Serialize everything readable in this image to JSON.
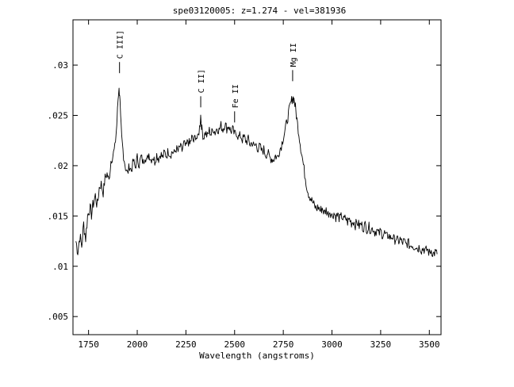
{
  "chart_data": {
    "type": "line",
    "title": "spe03120005: z=1.274 - vel=381936",
    "xlabel": "Wavelength (angstroms)",
    "ylabel": "",
    "xlim": [
      1670,
      3560
    ],
    "ylim": [
      0.0032,
      0.0345
    ],
    "grid": false,
    "x_ticks": [
      {
        "value": 1750,
        "label": "1750"
      },
      {
        "value": 2000,
        "label": "2000"
      },
      {
        "value": 2250,
        "label": "2250"
      },
      {
        "value": 2500,
        "label": "2500"
      },
      {
        "value": 2750,
        "label": "2750"
      },
      {
        "value": 3000,
        "label": "3000"
      },
      {
        "value": 3250,
        "label": "3250"
      },
      {
        "value": 3500,
        "label": "3500"
      }
    ],
    "y_ticks": [
      {
        "value": 0.005,
        "label": ".005"
      },
      {
        "value": 0.01,
        "label": ".01"
      },
      {
        "value": 0.015,
        "label": ".015"
      },
      {
        "value": 0.02,
        "label": ".02"
      },
      {
        "value": 0.025,
        "label": ".025"
      },
      {
        "value": 0.03,
        "label": ".03"
      }
    ],
    "annotations": [
      {
        "label": "C III]",
        "x": 1909,
        "y_flux": 0.0292
      },
      {
        "label": "C II]",
        "x": 2326,
        "y_flux": 0.0258
      },
      {
        "label": "Fe II",
        "x": 2500,
        "y_flux": 0.0243
      },
      {
        "label": "Mg II",
        "x": 2798,
        "y_flux": 0.0284
      }
    ],
    "series": [
      {
        "values": [
          [
            1685,
            0.0125
          ],
          [
            1695,
            0.0115
          ],
          [
            1705,
            0.013
          ],
          [
            1715,
            0.012
          ],
          [
            1725,
            0.0142
          ],
          [
            1735,
            0.0128
          ],
          [
            1745,
            0.015
          ],
          [
            1755,
            0.0158
          ],
          [
            1765,
            0.0152
          ],
          [
            1775,
            0.0163
          ],
          [
            1785,
            0.017
          ],
          [
            1795,
            0.016
          ],
          [
            1805,
            0.0178
          ],
          [
            1815,
            0.0182
          ],
          [
            1825,
            0.0173
          ],
          [
            1835,
            0.0188
          ],
          [
            1845,
            0.0192
          ],
          [
            1855,
            0.0185
          ],
          [
            1865,
            0.0205
          ],
          [
            1875,
            0.021
          ],
          [
            1885,
            0.0218
          ],
          [
            1895,
            0.024
          ],
          [
            1900,
            0.0262
          ],
          [
            1905,
            0.0276
          ],
          [
            1910,
            0.0272
          ],
          [
            1915,
            0.0245
          ],
          [
            1920,
            0.0228
          ],
          [
            1930,
            0.021
          ],
          [
            1940,
            0.0198
          ],
          [
            1950,
            0.0192
          ],
          [
            1960,
            0.02
          ],
          [
            1970,
            0.0195
          ],
          [
            1980,
            0.0205
          ],
          [
            1990,
            0.0198
          ],
          [
            2000,
            0.0208
          ],
          [
            2010,
            0.0201
          ],
          [
            2020,
            0.0209
          ],
          [
            2030,
            0.0203
          ],
          [
            2040,
            0.021
          ],
          [
            2050,
            0.0205
          ],
          [
            2060,
            0.0212
          ],
          [
            2070,
            0.0206
          ],
          [
            2080,
            0.0209
          ],
          [
            2090,
            0.0204
          ],
          [
            2100,
            0.0211
          ],
          [
            2110,
            0.0207
          ],
          [
            2120,
            0.0212
          ],
          [
            2130,
            0.0208
          ],
          [
            2140,
            0.0213
          ],
          [
            2150,
            0.021
          ],
          [
            2160,
            0.0215
          ],
          [
            2170,
            0.0211
          ],
          [
            2180,
            0.0214
          ],
          [
            2190,
            0.0212
          ],
          [
            2200,
            0.0217
          ],
          [
            2210,
            0.0214
          ],
          [
            2220,
            0.0219
          ],
          [
            2230,
            0.0215
          ],
          [
            2240,
            0.0222
          ],
          [
            2250,
            0.0218
          ],
          [
            2260,
            0.0225
          ],
          [
            2270,
            0.0221
          ],
          [
            2280,
            0.0228
          ],
          [
            2290,
            0.0224
          ],
          [
            2300,
            0.023
          ],
          [
            2310,
            0.0226
          ],
          [
            2320,
            0.0238
          ],
          [
            2326,
            0.025
          ],
          [
            2332,
            0.0236
          ],
          [
            2340,
            0.0228
          ],
          [
            2350,
            0.0233
          ],
          [
            2360,
            0.0229
          ],
          [
            2370,
            0.0235
          ],
          [
            2380,
            0.0231
          ],
          [
            2390,
            0.0237
          ],
          [
            2400,
            0.0233
          ],
          [
            2410,
            0.0238
          ],
          [
            2420,
            0.0235
          ],
          [
            2430,
            0.024
          ],
          [
            2440,
            0.0236
          ],
          [
            2450,
            0.0242
          ],
          [
            2460,
            0.0237
          ],
          [
            2470,
            0.024
          ],
          [
            2480,
            0.0234
          ],
          [
            2490,
            0.0236
          ],
          [
            2500,
            0.0231
          ],
          [
            2510,
            0.0233
          ],
          [
            2520,
            0.0228
          ],
          [
            2530,
            0.023
          ],
          [
            2540,
            0.0226
          ],
          [
            2550,
            0.0228
          ],
          [
            2560,
            0.0224
          ],
          [
            2570,
            0.0226
          ],
          [
            2580,
            0.0221
          ],
          [
            2590,
            0.0223
          ],
          [
            2600,
            0.0219
          ],
          [
            2610,
            0.0221
          ],
          [
            2620,
            0.0217
          ],
          [
            2630,
            0.0219
          ],
          [
            2640,
            0.0214
          ],
          [
            2650,
            0.0216
          ],
          [
            2660,
            0.0211
          ],
          [
            2670,
            0.0213
          ],
          [
            2680,
            0.0208
          ],
          [
            2690,
            0.0207
          ],
          [
            2700,
            0.0206
          ],
          [
            2710,
            0.021
          ],
          [
            2720,
            0.0208
          ],
          [
            2730,
            0.0215
          ],
          [
            2740,
            0.022
          ],
          [
            2750,
            0.0228
          ],
          [
            2760,
            0.0236
          ],
          [
            2770,
            0.0245
          ],
          [
            2780,
            0.0255
          ],
          [
            2790,
            0.0263
          ],
          [
            2798,
            0.0268
          ],
          [
            2805,
            0.0266
          ],
          [
            2812,
            0.0258
          ],
          [
            2820,
            0.0246
          ],
          [
            2830,
            0.0232
          ],
          [
            2840,
            0.0218
          ],
          [
            2850,
            0.0205
          ],
          [
            2860,
            0.0192
          ],
          [
            2870,
            0.018
          ],
          [
            2880,
            0.0172
          ],
          [
            2890,
            0.0168
          ],
          [
            2900,
            0.0164
          ],
          [
            2910,
            0.016
          ],
          [
            2920,
            0.0157
          ],
          [
            2930,
            0.0159
          ],
          [
            2940,
            0.0155
          ],
          [
            2950,
            0.0158
          ],
          [
            2960,
            0.0153
          ],
          [
            2970,
            0.0156
          ],
          [
            2980,
            0.0152
          ],
          [
            2990,
            0.0155
          ],
          [
            3000,
            0.015
          ],
          [
            3010,
            0.0153
          ],
          [
            3020,
            0.0149
          ],
          [
            3030,
            0.0151
          ],
          [
            3040,
            0.0147
          ],
          [
            3050,
            0.015
          ],
          [
            3060,
            0.0146
          ],
          [
            3070,
            0.0148
          ],
          [
            3080,
            0.0144
          ],
          [
            3090,
            0.0147
          ],
          [
            3100,
            0.0143
          ],
          [
            3110,
            0.0145
          ],
          [
            3120,
            0.0141
          ],
          [
            3130,
            0.0144
          ],
          [
            3140,
            0.014
          ],
          [
            3150,
            0.0142
          ],
          [
            3160,
            0.0138
          ],
          [
            3170,
            0.0141
          ],
          [
            3180,
            0.0137
          ],
          [
            3190,
            0.0139
          ],
          [
            3200,
            0.0136
          ],
          [
            3210,
            0.0138
          ],
          [
            3220,
            0.0134
          ],
          [
            3230,
            0.0136
          ],
          [
            3240,
            0.0132
          ],
          [
            3250,
            0.0135
          ],
          [
            3260,
            0.0131
          ],
          [
            3270,
            0.0133
          ],
          [
            3280,
            0.0129
          ],
          [
            3290,
            0.0131
          ],
          [
            3300,
            0.0128
          ],
          [
            3310,
            0.013
          ],
          [
            3320,
            0.0126
          ],
          [
            3330,
            0.0128
          ],
          [
            3340,
            0.0124
          ],
          [
            3350,
            0.0127
          ],
          [
            3360,
            0.0123
          ],
          [
            3370,
            0.0125
          ],
          [
            3380,
            0.0121
          ],
          [
            3390,
            0.0124
          ],
          [
            3400,
            0.012
          ],
          [
            3410,
            0.0122
          ],
          [
            3420,
            0.0119
          ],
          [
            3430,
            0.0121
          ],
          [
            3440,
            0.0117
          ],
          [
            3450,
            0.012
          ],
          [
            3460,
            0.0116
          ],
          [
            3470,
            0.0118
          ],
          [
            3480,
            0.0115
          ],
          [
            3490,
            0.0117
          ],
          [
            3500,
            0.0113
          ],
          [
            3510,
            0.0116
          ],
          [
            3520,
            0.0112
          ],
          [
            3530,
            0.0114
          ],
          [
            3540,
            0.0112
          ]
        ]
      }
    ]
  }
}
